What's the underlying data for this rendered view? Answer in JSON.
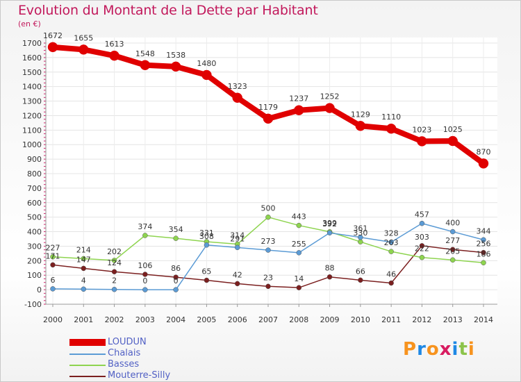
{
  "title": "Evolution du Montant de la Dette par Habitant",
  "unit_label": "(en €)",
  "logo_text": "Proxiti",
  "chart_data": {
    "type": "line",
    "title": "Evolution du Montant de la Dette par Habitant",
    "ylabel": "(en €)",
    "xlabel": "",
    "x": [
      "2000",
      "2001",
      "2002",
      "2003",
      "2004",
      "2005",
      "2006",
      "2007",
      "2008",
      "2009",
      "2010",
      "2011",
      "2012",
      "2013",
      "2014"
    ],
    "ylim": [
      -100,
      1700
    ],
    "yticks": [
      -100,
      0,
      100,
      200,
      300,
      400,
      500,
      600,
      700,
      800,
      900,
      1000,
      1100,
      1200,
      1300,
      1400,
      1500,
      1600,
      1700
    ],
    "grid": true,
    "legend_position": "bottom-left",
    "series": [
      {
        "name": "LOUDUN",
        "color": "#e00000",
        "values": [
          1672,
          1655,
          1613,
          1548,
          1538,
          1480,
          1323,
          1179,
          1237,
          1252,
          1129,
          1110,
          1023,
          1025,
          870
        ]
      },
      {
        "name": "Chalais",
        "color": "#5b9bd5",
        "values": [
          6,
          4,
          2,
          0,
          0,
          308,
          291,
          273,
          255,
          392,
          361,
          328,
          457,
          400,
          344
        ]
      },
      {
        "name": "Basses",
        "color": "#8ed44f",
        "values": [
          227,
          214,
          202,
          374,
          354,
          331,
          314,
          500,
          443,
          399,
          330,
          263,
          222,
          205,
          186
        ]
      },
      {
        "name": "Mouterre-Silly",
        "color": "#7b1f1f",
        "values": [
          171,
          147,
          124,
          106,
          86,
          65,
          42,
          23,
          14,
          88,
          66,
          46,
          303,
          277,
          256
        ]
      }
    ],
    "point_labels": {
      "LOUDUN": [
        "1672",
        "1655",
        "1613",
        "1548",
        "1538",
        "1480",
        "1323",
        "1179",
        "1237",
        "1252",
        "1129",
        "1110",
        "1023",
        "1025",
        "870"
      ],
      "Chalais": [
        "6",
        "4",
        "2",
        "0",
        "0",
        "308",
        "291",
        "273",
        "255",
        "392",
        "361",
        "328",
        "457",
        "400",
        "344"
      ],
      "Basses": [
        "227",
        "214",
        "202",
        "374",
        "354",
        "331",
        "314",
        "500",
        "443",
        "399",
        "330",
        "263",
        "222",
        "205",
        "186"
      ],
      "Mouterre-Silly": [
        "171",
        "147",
        "124",
        "106",
        "86",
        "65",
        "42",
        "23",
        "14",
        "88",
        "66",
        "46",
        "303",
        "277",
        "256"
      ]
    }
  }
}
